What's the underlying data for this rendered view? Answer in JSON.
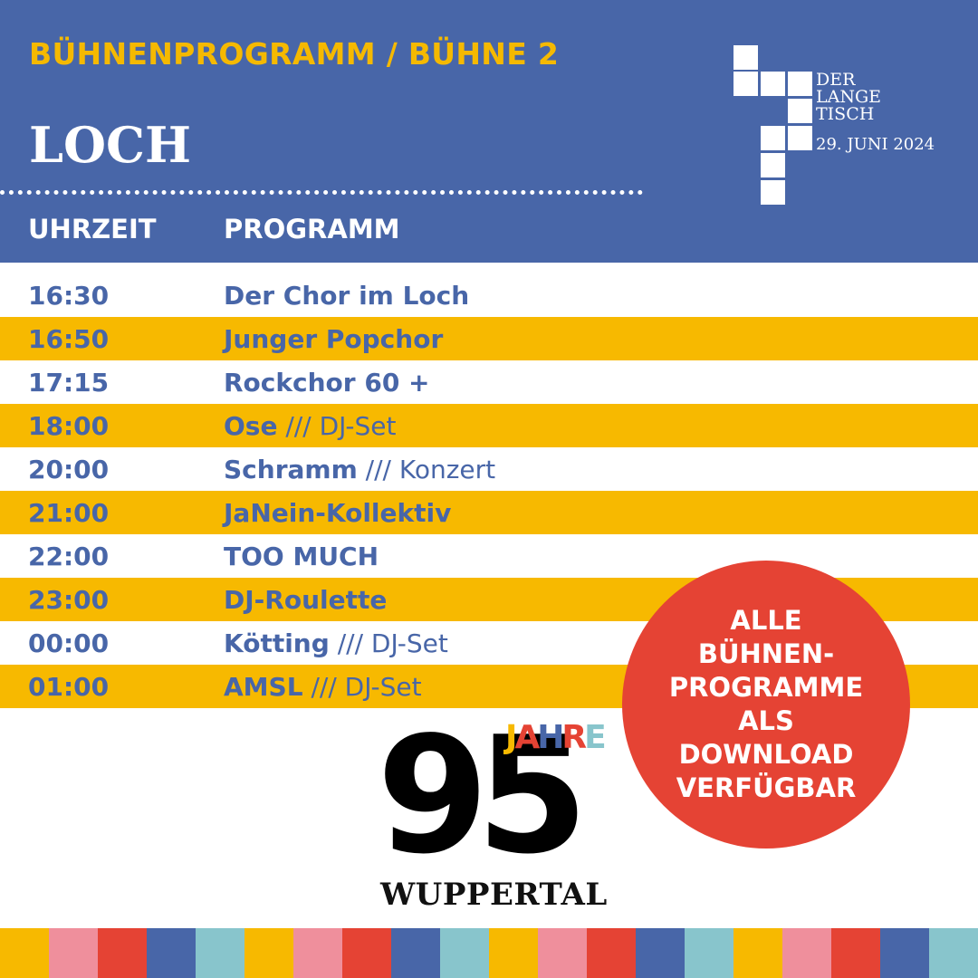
{
  "header": {
    "subtitle": "BÜHNENPROGRAMM / BÜHNE 2",
    "title": "LOCH",
    "col_time": "UHRZEIT",
    "col_program": "PROGRAMM"
  },
  "logo": {
    "line1": "DER",
    "line2": "LANGE",
    "line3": "TISCH",
    "date": "29. JUNI 2024"
  },
  "schedule": [
    {
      "time": "16:30",
      "act": "Der Chor im Loch",
      "detail": ""
    },
    {
      "time": "16:50",
      "act": "Junger Popchor",
      "detail": ""
    },
    {
      "time": "17:15",
      "act": "Rockchor 60 +",
      "detail": ""
    },
    {
      "time": "18:00",
      "act": "Ose",
      "detail": " /// DJ-Set"
    },
    {
      "time": "20:00",
      "act": "Schramm",
      "detail": " /// Konzert"
    },
    {
      "time": "21:00",
      "act": "JaNein-Kollektiv",
      "detail": ""
    },
    {
      "time": "22:00",
      "act": "TOO MUCH",
      "detail": ""
    },
    {
      "time": "23:00",
      "act": "DJ-Roulette",
      "detail": ""
    },
    {
      "time": "00:00",
      "act": "Kötting",
      "detail": " /// DJ-Set"
    },
    {
      "time": "01:00",
      "act": "AMSL",
      "detail": " /// DJ-Set"
    }
  ],
  "badge": {
    "lines": [
      "ALLE",
      "BÜHNEN-",
      "PROGRAMME",
      "ALS",
      "DOWNLOAD",
      "VERFÜGBAR"
    ]
  },
  "jubilee": {
    "number": "95",
    "jahre": "JAHRE",
    "city": "WUPPERTAL"
  },
  "colors": {
    "blue": "#4866a8",
    "yellow": "#f7b900",
    "red": "#e54334",
    "pink": "#ef8f9c",
    "teal": "#88c5cc"
  }
}
